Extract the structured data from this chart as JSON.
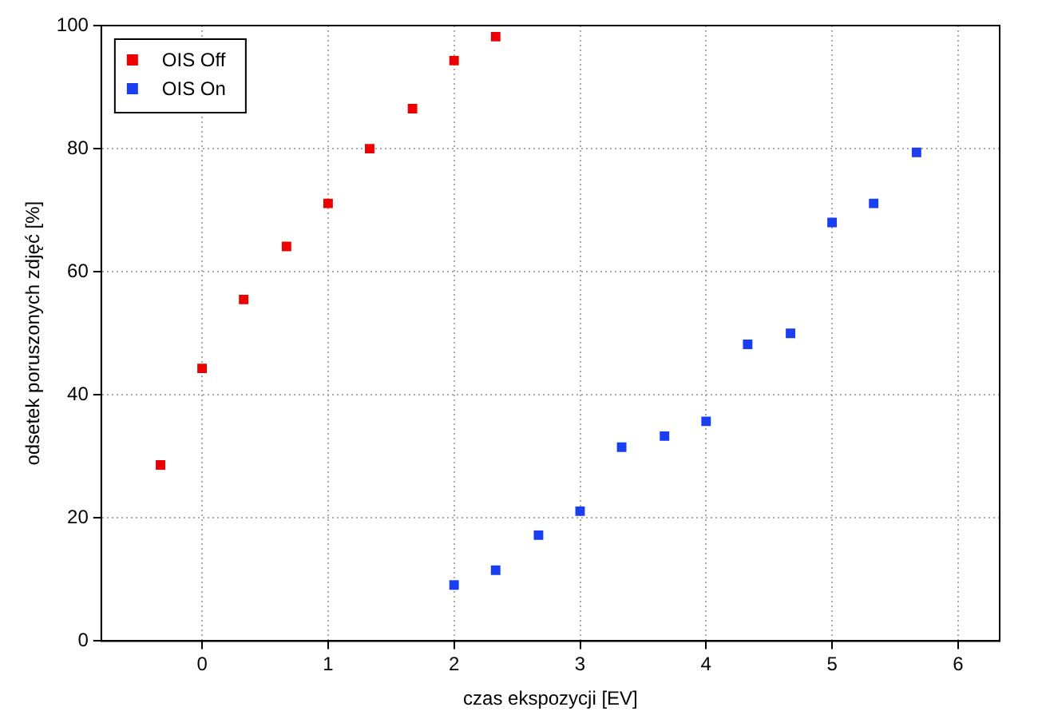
{
  "chart_data": {
    "type": "scatter",
    "xlabel": "czas ekspozycji [EV]",
    "ylabel": "odsetek poruszonych zdjęć [%]",
    "xlim": [
      -0.8,
      6.33
    ],
    "xticks": [
      0,
      1,
      2,
      3,
      4,
      5,
      6
    ],
    "ylim": [
      0,
      100
    ],
    "yticks": [
      0,
      20,
      40,
      60,
      80,
      100
    ],
    "grid": true,
    "legend": "top left",
    "marker": "square",
    "series": [
      {
        "name": "OIS Off",
        "color": "#ee0000",
        "x": [
          -0.33,
          0,
          0.33,
          0.67,
          1,
          1.33,
          1.67,
          2,
          2.33
        ],
        "values": [
          28.6,
          44.3,
          55.5,
          64.1,
          71.1,
          80,
          86.5,
          94.3,
          98.2
        ]
      },
      {
        "name": "OIS On",
        "color": "#1a3ff0",
        "x": [
          2,
          2.33,
          2.67,
          3,
          3.33,
          3.67,
          4,
          4.33,
          4.67,
          5,
          5.33,
          5.67
        ],
        "values": [
          9.1,
          11.5,
          17.2,
          21.1,
          31.5,
          33.3,
          35.7,
          48.2,
          50,
          68,
          71.1,
          79.4
        ]
      }
    ]
  }
}
